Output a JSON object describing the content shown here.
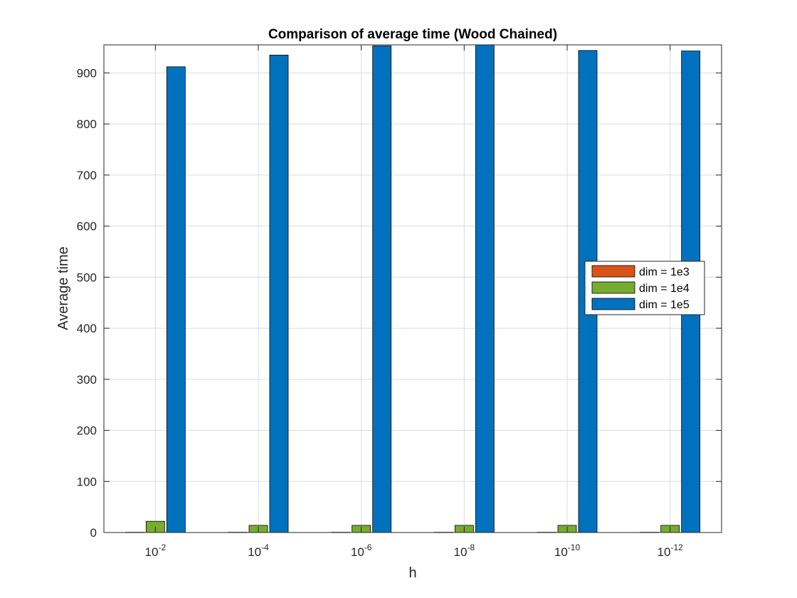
{
  "chart_data": {
    "type": "bar",
    "title": "Comparison of average time (Wood Chained)",
    "xlabel": "h",
    "ylabel": "Average time",
    "categories": [
      {
        "base": "10",
        "exp": "-2"
      },
      {
        "base": "10",
        "exp": "-4"
      },
      {
        "base": "10",
        "exp": "-6"
      },
      {
        "base": "10",
        "exp": "-8"
      },
      {
        "base": "10",
        "exp": "-10"
      },
      {
        "base": "10",
        "exp": "-12"
      }
    ],
    "series": [
      {
        "name": "dim = 1e3",
        "color": "#D95319",
        "values": [
          0.5,
          0.5,
          0.5,
          0.5,
          0.5,
          0.5
        ]
      },
      {
        "name": "dim = 1e4",
        "color": "#77AC30",
        "values": [
          22,
          14,
          14,
          14,
          14,
          14
        ]
      },
      {
        "name": "dim = 1e5",
        "color": "#0072BD",
        "values": [
          912,
          935,
          953,
          955,
          944,
          943
        ]
      }
    ],
    "ylim": [
      0,
      955
    ],
    "yticks": [
      "0",
      "100",
      "200",
      "300",
      "400",
      "500",
      "600",
      "700",
      "800",
      "900"
    ],
    "grid": true,
    "legend_position": "right"
  }
}
